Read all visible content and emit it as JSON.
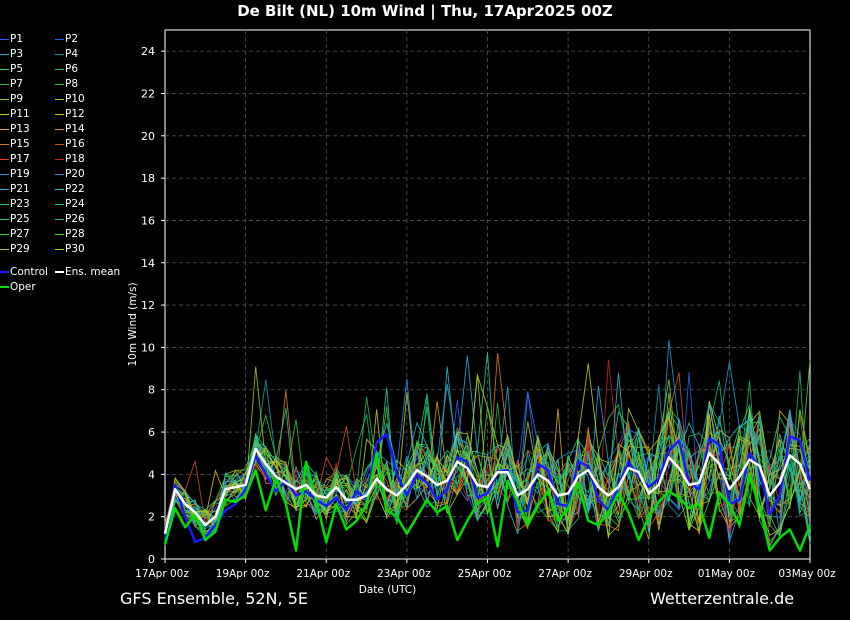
{
  "header": {
    "title": "De Bilt  (NL)  10m Wind | Thu, 17Apr2025 00Z"
  },
  "footer": {
    "left": "GFS Ensemble, 52N, 5E",
    "right": "Wetterzentrale.de"
  },
  "colors": {
    "control": "#1a1aff",
    "oper": "#00dd00",
    "mean": "#ffffff",
    "members": [
      "#3355ff",
      "#2266ee",
      "#22aacc",
      "#1199aa",
      "#22cc99",
      "#11bb66",
      "#22bb44",
      "#33cc22",
      "#88cc22",
      "#aacc22",
      "#cccc22",
      "#ddbb22",
      "#ddaa22",
      "#dd9922",
      "#dd7722",
      "#cc5522",
      "#dd4422",
      "#cc2222",
      "#2288ee",
      "#2299dd",
      "#22aadd",
      "#22bbcc",
      "#22ccaa",
      "#22cc88",
      "#22cc66",
      "#22bb55",
      "#33cc33",
      "#55cc22",
      "#99cc22",
      "#bbcc22"
    ]
  },
  "legend": [
    "P1",
    "P2",
    "P3",
    "P4",
    "P5",
    "P6",
    "P7",
    "P8",
    "P9",
    "P10",
    "P11",
    "P12",
    "P13",
    "P14",
    "P15",
    "P16",
    "P17",
    "P18",
    "P19",
    "P20",
    "P21",
    "P22",
    "P23",
    "P24",
    "P25",
    "P26",
    "P27",
    "P28",
    "P29",
    "P30",
    "Control",
    "Ens. mean",
    "Oper"
  ],
  "chart_data": {
    "type": "line",
    "title": "De Bilt  (NL)  10m Wind | Thu, 17Apr2025 00Z",
    "xlabel": "Date (UTC)",
    "ylabel": "10m Wind (m/s)",
    "ylim": [
      0,
      25
    ],
    "yticks": [
      0,
      2,
      4,
      6,
      8,
      10,
      12,
      14,
      16,
      18,
      20,
      22,
      24
    ],
    "xticks": [
      "17Apr 00z",
      "19Apr 00z",
      "21Apr 00z",
      "23Apr 00z",
      "25Apr 00z",
      "27Apr 00z",
      "29Apr 00z",
      "01May 00z",
      "03May 00z"
    ],
    "grid": true,
    "x_step_hours": 6,
    "series": [
      {
        "name": "Ens. mean",
        "values": [
          1.2,
          3.3,
          2.6,
          2.2,
          1.6,
          2.0,
          3.3,
          3.4,
          3.5,
          5.2,
          4.5,
          3.9,
          3.6,
          3.3,
          3.5,
          3.0,
          2.9,
          3.4,
          2.8,
          2.8,
          3.0,
          3.8,
          3.3,
          3.0,
          3.5,
          4.2,
          3.9,
          3.5,
          3.7,
          4.6,
          4.3,
          3.5,
          3.4,
          4.1,
          4.1,
          3.0,
          3.3,
          4.0,
          3.7,
          3.0,
          3.1,
          3.9,
          4.2,
          3.4,
          3.0,
          3.4,
          4.3,
          4.1,
          3.1,
          3.5,
          4.8,
          4.3,
          3.5,
          3.6,
          5.0,
          4.5,
          3.3,
          3.9,
          4.7,
          4.4,
          3.0,
          3.6,
          4.9,
          4.5,
          3.3
        ]
      },
      {
        "name": "Control",
        "values": [
          0.9,
          3.5,
          2.0,
          0.8,
          1.0,
          1.6,
          2.3,
          2.6,
          3.3,
          4.9,
          4.0,
          3.2,
          3.7,
          3.0,
          3.2,
          2.8,
          2.5,
          2.9,
          2.3,
          3.2,
          2.8,
          5.5,
          5.9,
          4.0,
          3.0,
          4.0,
          3.6,
          2.8,
          3.3,
          4.8,
          4.6,
          2.9,
          3.1,
          4.1,
          4.2,
          2.2,
          2.3,
          4.5,
          4.2,
          2.6,
          2.5,
          4.6,
          4.4,
          2.8,
          2.3,
          3.5,
          4.6,
          3.9,
          3.4,
          3.8,
          5.1,
          5.6,
          3.6,
          3.3,
          5.7,
          5.4,
          2.6,
          2.8,
          5.0,
          4.3,
          2.1,
          3.0,
          5.8,
          5.6,
          3.7
        ]
      },
      {
        "name": "Oper",
        "values": [
          0.7,
          2.4,
          1.5,
          2.1,
          0.9,
          1.3,
          2.8,
          2.7,
          3.0,
          4.2,
          2.3,
          3.8,
          2.6,
          0.4,
          4.6,
          2.8,
          0.8,
          2.6,
          1.4,
          1.8,
          2.6,
          5.0,
          2.3,
          2.0,
          1.2,
          2.0,
          2.8,
          2.2,
          2.5,
          0.9,
          1.8,
          2.6,
          2.9,
          0.6,
          3.7,
          2.7,
          1.6,
          2.5,
          3.2,
          1.8,
          2.4,
          3.6,
          1.8,
          1.6,
          2.2,
          3.1,
          2.2,
          0.9,
          2.0,
          2.7,
          3.2,
          2.9,
          2.4,
          2.6,
          1.0,
          3.1,
          2.6,
          1.6,
          3.9,
          2.5,
          0.4,
          1.0,
          1.4,
          0.4,
          1.6
        ]
      }
    ]
  }
}
